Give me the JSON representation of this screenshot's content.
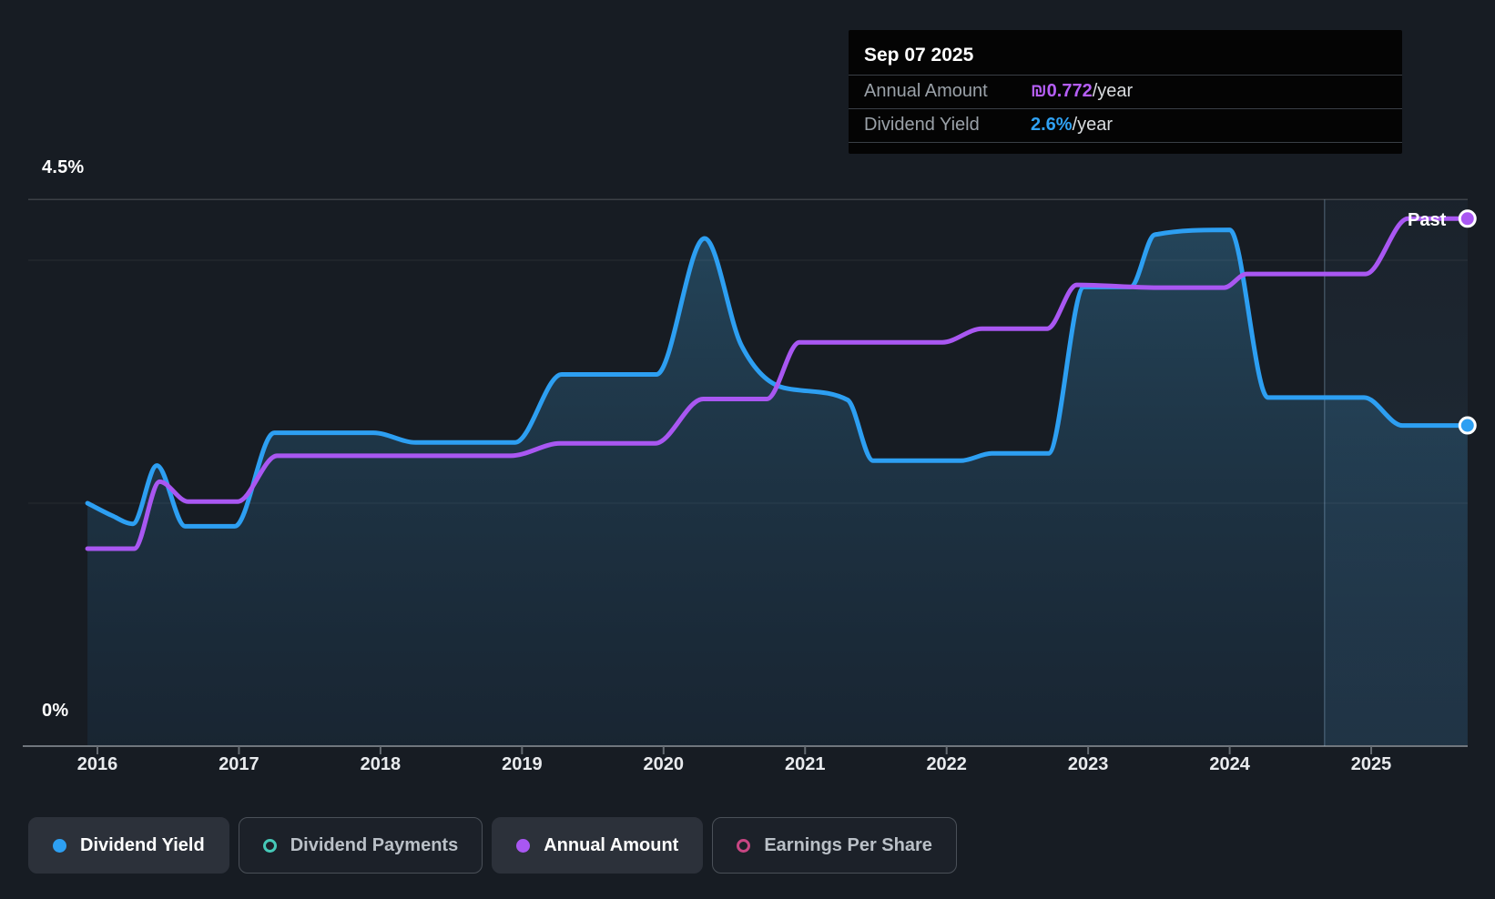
{
  "tooltip": {
    "date": "Sep 07 2025",
    "rows": [
      {
        "label": "Annual Amount",
        "value": "₪0.772",
        "suffix": "/year",
        "color_key": "purple"
      },
      {
        "label": "Dividend Yield",
        "value": "2.6%",
        "suffix": "/year",
        "color_key": "blue"
      }
    ]
  },
  "axis": {
    "y_top_label": "4.5%",
    "y_bottom_label": "0%",
    "x_labels": [
      "2016",
      "2017",
      "2018",
      "2019",
      "2020",
      "2021",
      "2022",
      "2023",
      "2024",
      "2025"
    ]
  },
  "past_label": "Past",
  "legend": [
    {
      "label": "Dividend Yield",
      "color": "#2D9FF2",
      "active": true
    },
    {
      "label": "Dividend Payments",
      "color": "#46C9B8",
      "active": false
    },
    {
      "label": "Annual Amount",
      "color": "#A957F2",
      "active": true
    },
    {
      "label": "Earnings Per Share",
      "color": "#C84683",
      "active": false
    }
  ],
  "colors": {
    "dividend_yield_line": "#2D9FF2",
    "annual_amount_line": "#A957F2",
    "tooltip_purple": "#B55EF6",
    "tooltip_blue": "#2FA1F3"
  },
  "chart_data": {
    "type": "line",
    "title": "Dividend history",
    "x_ticks": [
      2016,
      2017,
      2018,
      2019,
      2020,
      2021,
      2022,
      2023,
      2024,
      2025
    ],
    "x_range": [
      2015.93,
      2025.68
    ],
    "y_axis": {
      "unit": "%",
      "min": 0,
      "max": 4.5,
      "top_label": "4.5%",
      "bottom_label": "0%"
    },
    "gridline_values_percent": [
      4.5,
      4.0,
      2.0
    ],
    "past_divider_year": 2024.67,
    "series": [
      {
        "name": "Dividend Yield",
        "unit": "%",
        "color": "#2D9FF2",
        "axis_max": 4.5,
        "area_fill": true,
        "current_value": "2.6%/year",
        "points": [
          [
            2015.93,
            2.0
          ],
          [
            2016.1,
            1.9
          ],
          [
            2016.25,
            1.83
          ],
          [
            2016.42,
            2.31
          ],
          [
            2016.62,
            1.81
          ],
          [
            2016.97,
            1.81
          ],
          [
            2017.25,
            2.58
          ],
          [
            2017.95,
            2.58
          ],
          [
            2018.25,
            2.5
          ],
          [
            2018.95,
            2.5
          ],
          [
            2019.28,
            3.06
          ],
          [
            2019.95,
            3.06
          ],
          [
            2020.29,
            4.18
          ],
          [
            2020.55,
            3.3
          ],
          [
            2020.85,
            2.95
          ],
          [
            2021.3,
            2.85
          ],
          [
            2021.48,
            2.35
          ],
          [
            2022.1,
            2.35
          ],
          [
            2022.32,
            2.41
          ],
          [
            2022.72,
            2.41
          ],
          [
            2022.97,
            3.78
          ],
          [
            2023.3,
            3.78
          ],
          [
            2023.47,
            4.21
          ],
          [
            2024.0,
            4.25
          ],
          [
            2024.27,
            2.87
          ],
          [
            2024.95,
            2.87
          ],
          [
            2025.22,
            2.64
          ],
          [
            2025.68,
            2.64
          ]
        ]
      },
      {
        "name": "Annual Amount",
        "unit": "₪",
        "color": "#A957F2",
        "axis_max": 0.8,
        "area_fill": false,
        "current_value": "₪0.772/year",
        "points": [
          [
            2015.93,
            0.289
          ],
          [
            2016.26,
            0.289
          ],
          [
            2016.44,
            0.387
          ],
          [
            2016.64,
            0.358
          ],
          [
            2016.99,
            0.358
          ],
          [
            2017.27,
            0.425
          ],
          [
            2018.92,
            0.425
          ],
          [
            2019.27,
            0.443
          ],
          [
            2019.94,
            0.443
          ],
          [
            2020.28,
            0.508
          ],
          [
            2020.73,
            0.508
          ],
          [
            2020.96,
            0.591
          ],
          [
            2021.97,
            0.591
          ],
          [
            2022.25,
            0.611
          ],
          [
            2022.71,
            0.611
          ],
          [
            2022.92,
            0.675
          ],
          [
            2023.5,
            0.671
          ],
          [
            2023.96,
            0.671
          ],
          [
            2024.12,
            0.691
          ],
          [
            2024.96,
            0.691
          ],
          [
            2025.26,
            0.772
          ],
          [
            2025.68,
            0.772
          ]
        ]
      }
    ]
  }
}
